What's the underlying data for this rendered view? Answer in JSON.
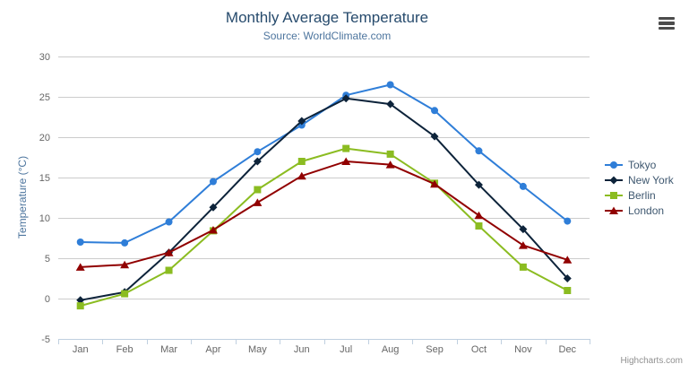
{
  "header": {
    "title": "Monthly Average Temperature",
    "subtitle": "Source: WorldClimate.com"
  },
  "export_menu": {
    "icon": "hamburger-icon"
  },
  "credits": {
    "label": "Highcharts.com"
  },
  "colors": {
    "title": "#274b6d",
    "subtitle": "#4d759e",
    "axis_title": "#4d759e",
    "tick_label": "#666666",
    "grid": "#cccccc",
    "axis_line": "#c0d0e0",
    "legend_text": "#3e576f",
    "credits": "#909090",
    "export_icon": "#4c4c4c"
  },
  "chart_data": {
    "type": "line",
    "title": "Monthly Average Temperature",
    "subtitle": "Source: WorldClimate.com",
    "categories": [
      "Jan",
      "Feb",
      "Mar",
      "Apr",
      "May",
      "Jun",
      "Jul",
      "Aug",
      "Sep",
      "Oct",
      "Nov",
      "Dec"
    ],
    "xlabel": "",
    "ylabel": "Temperature (°C)",
    "ylim": [
      -5,
      30
    ],
    "yticks": [
      -5,
      0,
      5,
      10,
      15,
      20,
      25,
      30
    ],
    "grid": true,
    "legend_position": "right",
    "series": [
      {
        "name": "Tokyo",
        "color": "#2f7ed8",
        "marker": "circle",
        "values": [
          7.0,
          6.9,
          9.5,
          14.5,
          18.2,
          21.5,
          25.2,
          26.5,
          23.3,
          18.3,
          13.9,
          9.6
        ]
      },
      {
        "name": "New York",
        "color": "#0d233a",
        "marker": "diamond",
        "values": [
          -0.2,
          0.8,
          5.7,
          11.3,
          17.0,
          22.0,
          24.8,
          24.1,
          20.1,
          14.1,
          8.6,
          2.5
        ]
      },
      {
        "name": "Berlin",
        "color": "#8bbc21",
        "marker": "square",
        "values": [
          -0.9,
          0.6,
          3.5,
          8.4,
          13.5,
          17.0,
          18.6,
          17.9,
          14.3,
          9.0,
          3.9,
          1.0
        ]
      },
      {
        "name": "London",
        "color": "#910000",
        "marker": "triangle",
        "values": [
          3.9,
          4.2,
          5.7,
          8.5,
          11.9,
          15.2,
          17.0,
          16.6,
          14.2,
          10.3,
          6.6,
          4.8
        ]
      }
    ]
  }
}
